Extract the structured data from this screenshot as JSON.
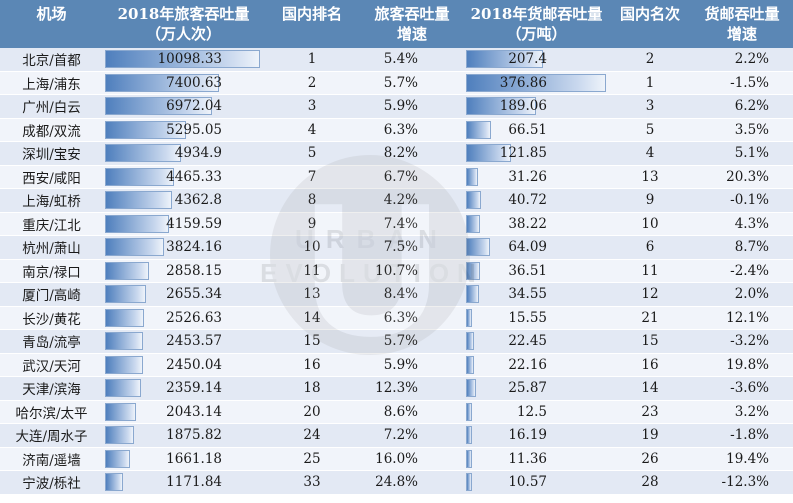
{
  "chart_data": {
    "type": "table",
    "headers": {
      "city": "机场",
      "pax": [
        "2018年旅客吞吐量",
        "（万人次）"
      ],
      "pax_rank": "国内排名",
      "pax_growth": [
        "旅客吞吐量",
        "增速"
      ],
      "cargo": [
        "2018年货邮吞吐量",
        "（万吨）"
      ],
      "cargo_rank": "国内名次",
      "cargo_growth": [
        "货邮吞吐量",
        "增速"
      ]
    },
    "pax_max": 10098.33,
    "cargo_max": 376.86,
    "rows": [
      {
        "city": "北京/首都",
        "pax": "10098.33",
        "pax_rank": "1",
        "pax_growth": "5.4%",
        "cargo": "207.4",
        "cargo_rank": "2",
        "cargo_growth": "2.2%"
      },
      {
        "city": "上海/浦东",
        "pax": "7400.63",
        "pax_rank": "2",
        "pax_growth": "5.7%",
        "cargo": "376.86",
        "cargo_rank": "1",
        "cargo_growth": "-1.5%"
      },
      {
        "city": "广州/白云",
        "pax": "6972.04",
        "pax_rank": "3",
        "pax_growth": "5.9%",
        "cargo": "189.06",
        "cargo_rank": "3",
        "cargo_growth": "6.2%"
      },
      {
        "city": "成都/双流",
        "pax": "5295.05",
        "pax_rank": "4",
        "pax_growth": "6.3%",
        "cargo": "66.51",
        "cargo_rank": "5",
        "cargo_growth": "3.5%"
      },
      {
        "city": "深圳/宝安",
        "pax": "4934.9",
        "pax_rank": "5",
        "pax_growth": "8.2%",
        "cargo": "121.85",
        "cargo_rank": "4",
        "cargo_growth": "5.1%"
      },
      {
        "city": "西安/咸阳",
        "pax": "4465.33",
        "pax_rank": "7",
        "pax_growth": "6.7%",
        "cargo": "31.26",
        "cargo_rank": "13",
        "cargo_growth": "20.3%"
      },
      {
        "city": "上海/虹桥",
        "pax": "4362.8",
        "pax_rank": "8",
        "pax_growth": "4.2%",
        "cargo": "40.72",
        "cargo_rank": "9",
        "cargo_growth": "-0.1%"
      },
      {
        "city": "重庆/江北",
        "pax": "4159.59",
        "pax_rank": "9",
        "pax_growth": "7.4%",
        "cargo": "38.22",
        "cargo_rank": "10",
        "cargo_growth": "4.3%"
      },
      {
        "city": "杭州/萧山",
        "pax": "3824.16",
        "pax_rank": "10",
        "pax_growth": "7.5%",
        "cargo": "64.09",
        "cargo_rank": "6",
        "cargo_growth": "8.7%"
      },
      {
        "city": "南京/禄口",
        "pax": "2858.15",
        "pax_rank": "11",
        "pax_growth": "10.7%",
        "cargo": "36.51",
        "cargo_rank": "11",
        "cargo_growth": "-2.4%"
      },
      {
        "city": "厦门/高崎",
        "pax": "2655.34",
        "pax_rank": "13",
        "pax_growth": "8.4%",
        "cargo": "34.55",
        "cargo_rank": "12",
        "cargo_growth": "2.0%"
      },
      {
        "city": "长沙/黄花",
        "pax": "2526.63",
        "pax_rank": "14",
        "pax_growth": "6.3%",
        "cargo": "15.55",
        "cargo_rank": "21",
        "cargo_growth": "12.1%"
      },
      {
        "city": "青岛/流亭",
        "pax": "2453.57",
        "pax_rank": "15",
        "pax_growth": "5.7%",
        "cargo": "22.45",
        "cargo_rank": "15",
        "cargo_growth": "-3.2%"
      },
      {
        "city": "武汉/天河",
        "pax": "2450.04",
        "pax_rank": "16",
        "pax_growth": "5.9%",
        "cargo": "22.16",
        "cargo_rank": "16",
        "cargo_growth": "19.8%"
      },
      {
        "city": "天津/滨海",
        "pax": "2359.14",
        "pax_rank": "18",
        "pax_growth": "12.3%",
        "cargo": "25.87",
        "cargo_rank": "14",
        "cargo_growth": "-3.6%"
      },
      {
        "city": "哈尔滨/太平",
        "pax": "2043.14",
        "pax_rank": "20",
        "pax_growth": "8.6%",
        "cargo": "12.5",
        "cargo_rank": "23",
        "cargo_growth": "3.2%"
      },
      {
        "city": "大连/周水子",
        "pax": "1875.82",
        "pax_rank": "24",
        "pax_growth": "7.2%",
        "cargo": "16.19",
        "cargo_rank": "19",
        "cargo_growth": "-1.8%"
      },
      {
        "city": "济南/遥墙",
        "pax": "1661.18",
        "pax_rank": "25",
        "pax_growth": "16.0%",
        "cargo": "11.36",
        "cargo_rank": "26",
        "cargo_growth": "19.4%"
      },
      {
        "city": "宁波/栎社",
        "pax": "1171.84",
        "pax_rank": "33",
        "pax_growth": "24.8%",
        "cargo": "10.57",
        "cargo_rank": "28",
        "cargo_growth": "-12.3%"
      }
    ]
  },
  "watermark": {
    "line1": "URBAN",
    "line2": "EVOLUTION",
    "glyph": "U"
  },
  "colors": {
    "header_bg": "#5b87b5",
    "row_odd": "#e3e9f4",
    "row_even": "#f1f4fa",
    "bar": "#4f7fbd"
  }
}
